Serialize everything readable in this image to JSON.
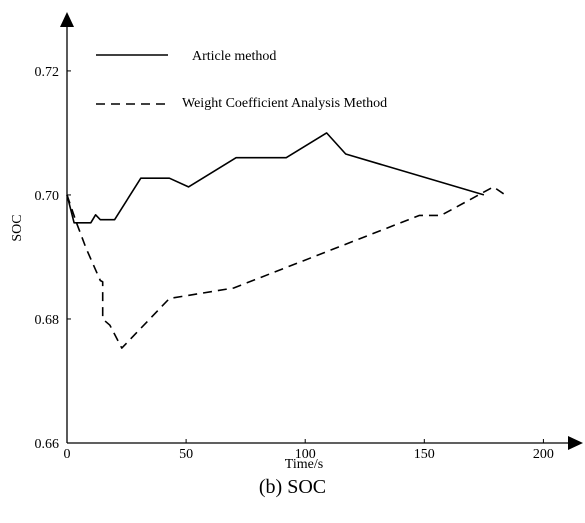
{
  "caption": "(b) SOC",
  "chart_data": {
    "type": "line",
    "xlabel": "Time/s",
    "ylabel": "SOC",
    "xlim": [
      0,
      212
    ],
    "ylim": [
      0.66,
      0.7295
    ],
    "xticks": [
      0,
      50,
      100,
      150,
      200
    ],
    "xtick_labels": [
      "0",
      "50",
      "100",
      "150",
      "200"
    ],
    "yticks": [
      0.66,
      0.68,
      0.7,
      0.72
    ],
    "ytick_labels": [
      "0.66",
      "0.68",
      "0.70",
      "0.72"
    ],
    "grid": false,
    "legend_position": "top-left",
    "series": [
      {
        "name": "Article method",
        "style": "solid",
        "color": "#000000",
        "x": [
          0,
          3,
          4,
          10,
          12,
          14,
          16,
          20,
          31,
          43,
          51,
          71,
          92,
          109,
          117,
          175
        ],
        "y": [
          0.7,
          0.6955,
          0.6955,
          0.6955,
          0.6968,
          0.696,
          0.696,
          0.696,
          0.7027,
          0.7027,
          0.7013,
          0.706,
          0.706,
          0.71,
          0.7066,
          0.7
        ]
      },
      {
        "name": "Weight Coefficient Analysis Method",
        "style": "dashed",
        "color": "#000000",
        "x": [
          0,
          4,
          8,
          14,
          15,
          15,
          18,
          23,
          43,
          70,
          148,
          157,
          179,
          184
        ],
        "y": [
          0.7,
          0.6955,
          0.6914,
          0.6862,
          0.686,
          0.68,
          0.679,
          0.6753,
          0.6833,
          0.685,
          0.6967,
          0.6967,
          0.7013,
          0.7
        ]
      }
    ]
  }
}
